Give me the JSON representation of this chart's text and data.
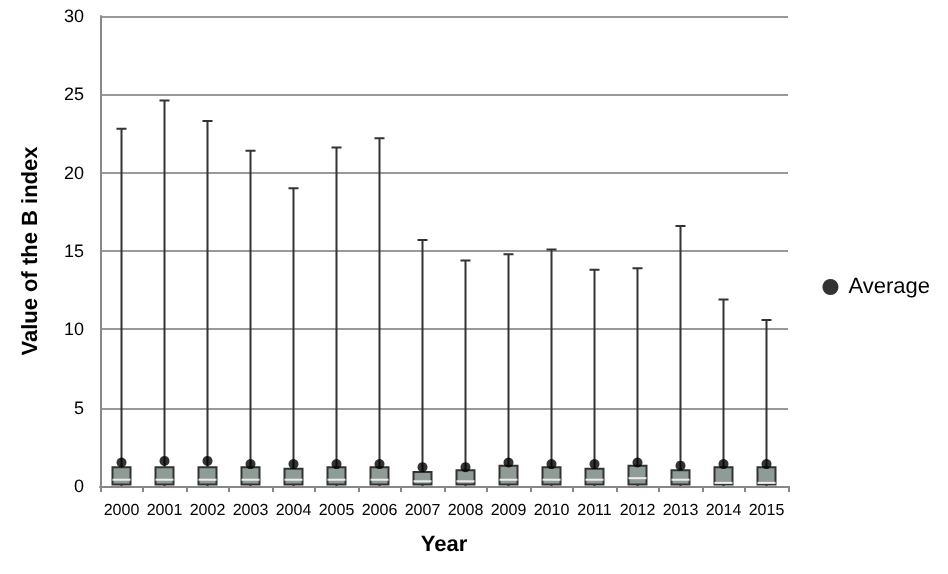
{
  "chart_data": {
    "type": "box",
    "xlabel": "Year",
    "ylabel": "Value of the B index",
    "categories": [
      "2000",
      "2001",
      "2002",
      "2003",
      "2004",
      "2005",
      "2006",
      "2007",
      "2008",
      "2009",
      "2010",
      "2011",
      "2012",
      "2013",
      "2014",
      "2015"
    ],
    "series": [
      {
        "color": "#8f9c96",
        "boxes": [
          {
            "low": 0,
            "q1": 0.1,
            "median": 0.4,
            "q3": 1.2,
            "high": 22.8
          },
          {
            "low": 0,
            "q1": 0.1,
            "median": 0.4,
            "q3": 1.2,
            "high": 24.6
          },
          {
            "low": 0,
            "q1": 0.1,
            "median": 0.4,
            "q3": 1.2,
            "high": 23.3
          },
          {
            "low": 0,
            "q1": 0.1,
            "median": 0.4,
            "q3": 1.2,
            "high": 21.4
          },
          {
            "low": 0,
            "q1": 0.1,
            "median": 0.4,
            "q3": 1.1,
            "high": 19.0
          },
          {
            "low": 0,
            "q1": 0.1,
            "median": 0.4,
            "q3": 1.2,
            "high": 21.6
          },
          {
            "low": 0,
            "q1": 0.1,
            "median": 0.4,
            "q3": 1.2,
            "high": 22.2
          },
          {
            "low": 0,
            "q1": 0.1,
            "median": 0.3,
            "q3": 0.9,
            "high": 15.7
          },
          {
            "low": 0,
            "q1": 0.1,
            "median": 0.3,
            "q3": 1.0,
            "high": 14.4
          },
          {
            "low": 0,
            "q1": 0.1,
            "median": 0.4,
            "q3": 1.3,
            "high": 14.8
          },
          {
            "low": 0,
            "q1": 0.1,
            "median": 0.4,
            "q3": 1.2,
            "high": 15.1
          },
          {
            "low": 0,
            "q1": 0.1,
            "median": 0.4,
            "q3": 1.1,
            "high": 13.8
          },
          {
            "low": 0,
            "q1": 0.1,
            "median": 0.5,
            "q3": 1.3,
            "high": 13.9
          },
          {
            "low": 0,
            "q1": 0.1,
            "median": 0.4,
            "q3": 1.0,
            "high": 16.6
          },
          {
            "low": 0,
            "q1": 0.1,
            "median": 0.2,
            "q3": 1.2,
            "high": 11.9
          },
          {
            "low": 0,
            "q1": 0.1,
            "median": 0.2,
            "q3": 1.2,
            "high": 10.6
          }
        ]
      },
      {
        "type": "scatter",
        "name": "Average",
        "color": "#000000",
        "marker": "circle",
        "values": [
          1.5,
          1.6,
          1.6,
          1.4,
          1.4,
          1.4,
          1.4,
          1.2,
          1.2,
          1.5,
          1.4,
          1.4,
          1.5,
          1.3,
          1.4,
          1.4
        ]
      }
    ],
    "ylim": [
      0,
      30
    ],
    "yticks": [
      0,
      5,
      10,
      15,
      20,
      25,
      30
    ],
    "grid": "y",
    "legend": "right"
  }
}
